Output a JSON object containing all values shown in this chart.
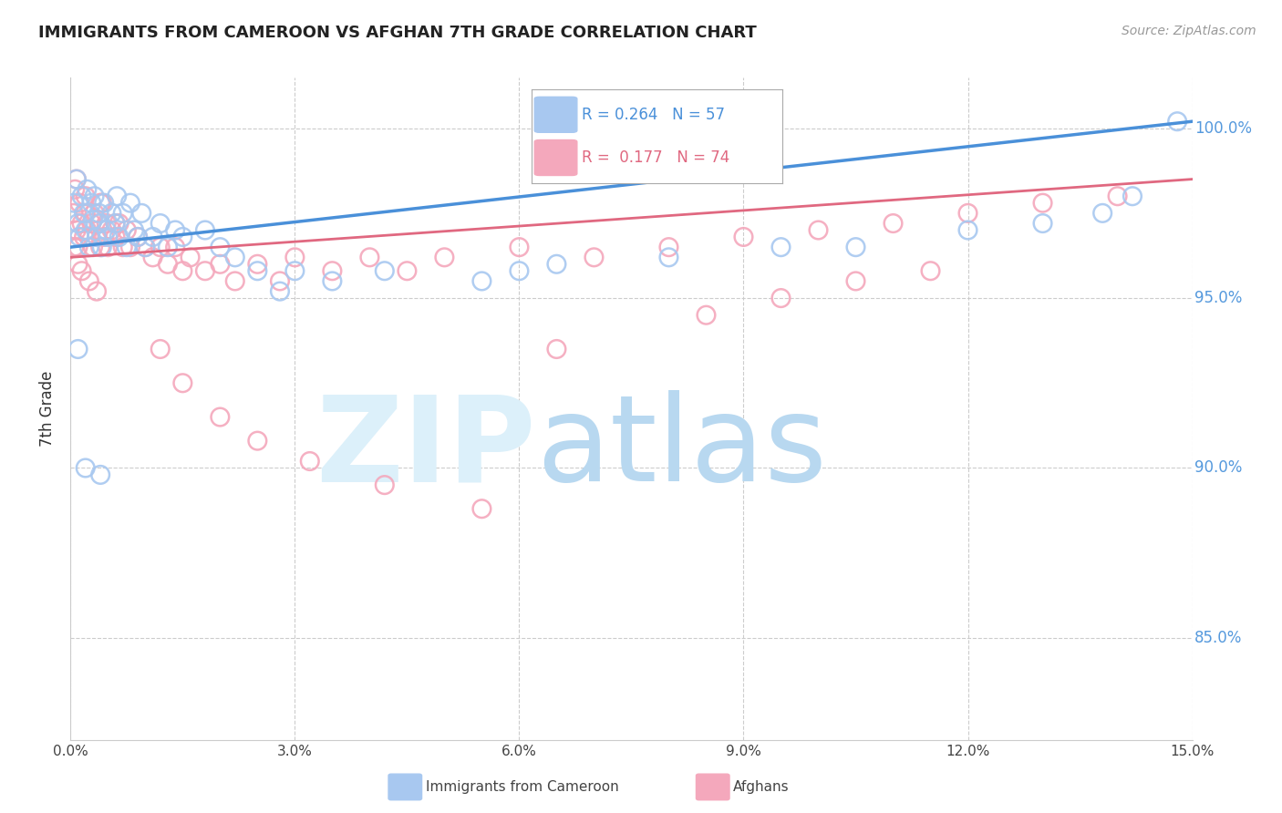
{
  "title": "IMMIGRANTS FROM CAMEROON VS AFGHAN 7TH GRADE CORRELATION CHART",
  "source": "Source: ZipAtlas.com",
  "ylabel": "7th Grade",
  "xmin": 0.0,
  "xmax": 15.0,
  "ymin": 82.0,
  "ymax": 101.5,
  "yticks": [
    85.0,
    90.0,
    95.0,
    100.0
  ],
  "xticks": [
    0.0,
    3.0,
    6.0,
    9.0,
    12.0,
    15.0
  ],
  "legend_r_blue": "0.264",
  "legend_n_blue": "57",
  "legend_r_pink": "0.177",
  "legend_n_pink": "74",
  "blue_color": "#A8C8F0",
  "pink_color": "#F4A8BC",
  "trendline_blue": "#4A90D9",
  "trendline_pink": "#E06880",
  "blue_x": [
    0.05,
    0.08,
    0.1,
    0.12,
    0.15,
    0.18,
    0.2,
    0.22,
    0.25,
    0.28,
    0.3,
    0.32,
    0.35,
    0.38,
    0.4,
    0.42,
    0.45,
    0.48,
    0.5,
    0.55,
    0.6,
    0.62,
    0.65,
    0.7,
    0.75,
    0.8,
    0.85,
    0.9,
    0.95,
    1.0,
    1.1,
    1.2,
    1.3,
    1.4,
    1.5,
    1.8,
    2.0,
    2.2,
    2.5,
    3.0,
    3.5,
    4.2,
    5.5,
    6.0,
    6.5,
    8.0,
    9.5,
    10.5,
    12.0,
    13.0,
    13.8,
    14.2,
    14.8,
    0.1,
    0.2,
    0.4,
    2.8
  ],
  "blue_y": [
    97.8,
    98.5,
    97.2,
    96.8,
    98.0,
    97.5,
    97.0,
    98.2,
    96.5,
    97.8,
    97.3,
    98.0,
    96.8,
    97.5,
    97.2,
    96.5,
    97.8,
    97.0,
    96.8,
    97.5,
    97.2,
    98.0,
    96.8,
    97.5,
    96.5,
    97.8,
    97.0,
    96.8,
    97.5,
    96.5,
    96.8,
    97.2,
    96.5,
    97.0,
    96.8,
    97.0,
    96.5,
    96.2,
    95.8,
    95.8,
    95.5,
    95.8,
    95.5,
    95.8,
    96.0,
    96.2,
    96.5,
    96.5,
    97.0,
    97.2,
    97.5,
    98.0,
    100.2,
    93.5,
    90.0,
    89.8,
    95.2
  ],
  "pink_x": [
    0.04,
    0.06,
    0.08,
    0.1,
    0.12,
    0.15,
    0.18,
    0.2,
    0.22,
    0.25,
    0.28,
    0.3,
    0.32,
    0.35,
    0.38,
    0.4,
    0.42,
    0.45,
    0.48,
    0.5,
    0.55,
    0.6,
    0.65,
    0.7,
    0.75,
    0.8,
    0.9,
    1.0,
    1.1,
    1.2,
    1.3,
    1.4,
    1.5,
    1.6,
    1.8,
    2.0,
    2.2,
    2.5,
    2.8,
    3.0,
    3.5,
    4.0,
    4.5,
    5.0,
    6.0,
    7.0,
    8.0,
    9.0,
    10.0,
    11.0,
    12.0,
    13.0,
    14.0,
    0.05,
    0.1,
    0.15,
    0.25,
    0.35,
    1.2,
    1.5,
    2.0,
    2.5,
    3.2,
    4.2,
    5.5,
    6.5,
    8.5,
    9.5,
    10.5,
    11.5,
    0.08,
    0.2,
    0.4,
    0.6
  ],
  "pink_y": [
    97.5,
    98.2,
    97.0,
    96.5,
    97.8,
    97.2,
    96.8,
    97.5,
    97.0,
    96.8,
    97.2,
    96.5,
    97.5,
    96.8,
    97.2,
    96.5,
    97.8,
    96.8,
    97.2,
    96.5,
    97.0,
    96.8,
    97.2,
    96.5,
    97.0,
    96.5,
    96.8,
    96.5,
    96.2,
    96.5,
    96.0,
    96.5,
    95.8,
    96.2,
    95.8,
    96.0,
    95.5,
    96.0,
    95.5,
    96.2,
    95.8,
    96.2,
    95.8,
    96.2,
    96.5,
    96.2,
    96.5,
    96.8,
    97.0,
    97.2,
    97.5,
    97.8,
    98.0,
    96.5,
    96.0,
    95.8,
    95.5,
    95.2,
    93.5,
    92.5,
    91.5,
    90.8,
    90.2,
    89.5,
    88.8,
    93.5,
    94.5,
    95.0,
    95.5,
    95.8,
    98.5,
    98.0,
    97.8,
    97.2
  ]
}
